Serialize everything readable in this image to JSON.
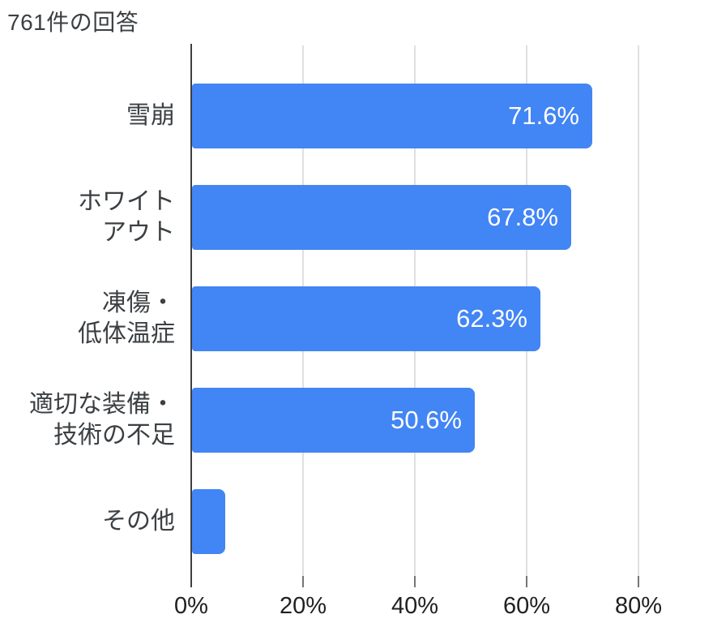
{
  "title": "761件の回答",
  "colors": {
    "bar": "#4285f4",
    "bar_value_text": "#ffffff",
    "title_text": "#3c4043",
    "category_text": "#3c4043",
    "tick_label_text": "#212121",
    "gridline": "#e0e0e0",
    "axis_line": "#3c4043",
    "tick_mark": "#757575",
    "background": "#ffffff"
  },
  "chart_data": {
    "type": "bar",
    "orientation": "horizontal",
    "title": "761件の回答",
    "categories": [
      "雪崩",
      "ホワイト\nアウト",
      "凍傷・\n低体温症",
      "適切な装備・\n技術の不足",
      "その他"
    ],
    "values": [
      71.6,
      67.8,
      62.3,
      50.6,
      5.9
    ],
    "value_labels": [
      "71.6%",
      "67.8%",
      "62.3%",
      "50.6%",
      ""
    ],
    "x_ticks": [
      "0%",
      "20%",
      "40%",
      "60%",
      "80%"
    ],
    "xlabel": "",
    "ylabel": "",
    "xlim": [
      0,
      80
    ],
    "grid": true,
    "legend": false
  }
}
